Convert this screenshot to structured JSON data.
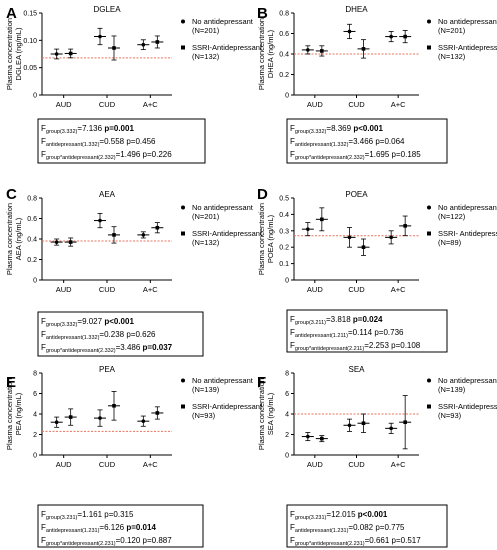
{
  "chart_data": [
    {
      "panel": "A",
      "title": "DGLEA",
      "type": "scatter",
      "ylabel_lines": [
        "Plasma concentration",
        "DGLEA (ng/mL)"
      ],
      "ylim": [
        0,
        0.15
      ],
      "yticks": [
        0,
        0.05,
        0.1,
        0.15
      ],
      "yticklabels": [
        "0",
        "0.05",
        "0.10",
        "0.15"
      ],
      "categories": [
        "AUD",
        "CUD",
        "A+C"
      ],
      "reference_line": 0.068,
      "series": [
        {
          "name": "No antidepressant",
          "n": "(N=201)",
          "marker": "circle",
          "mean": [
            0.075,
            0.107,
            0.092
          ],
          "err": [
            0.009,
            0.015,
            0.009
          ]
        },
        {
          "name": "SSRI-Antidepressant",
          "n": "(N=132)",
          "marker": "square",
          "mean": [
            0.076,
            0.086,
            0.097
          ],
          "err": [
            0.008,
            0.022,
            0.011
          ]
        }
      ],
      "stats": [
        [
          {
            "t": "F"
          },
          {
            "t": "group(3.332)",
            "sub": true
          },
          {
            "t": "=7.136 "
          },
          {
            "t": "p=0.001",
            "bold": true
          }
        ],
        [
          {
            "t": "F"
          },
          {
            "t": "antidepressant(1.332)",
            "sub": true
          },
          {
            "t": "=0.558 p=0.456"
          }
        ],
        [
          {
            "t": "F"
          },
          {
            "t": "group*antidepressant(2.332)",
            "sub": true
          },
          {
            "t": "=1.496 p=0.226"
          }
        ]
      ]
    },
    {
      "panel": "B",
      "title": "DHEA",
      "type": "scatter",
      "ylabel_lines": [
        "Plasma concentration",
        "DHEA (ng/mL)"
      ],
      "ylim": [
        0,
        0.8
      ],
      "yticks": [
        0,
        0.2,
        0.4,
        0.6,
        0.8
      ],
      "yticklabels": [
        "0",
        "0.2",
        "0.4",
        "0.6",
        "0.8"
      ],
      "categories": [
        "AUD",
        "CUD",
        "A+C"
      ],
      "reference_line": 0.4,
      "series": [
        {
          "name": "No antidepressant",
          "n": "(N=201)",
          "marker": "circle",
          "mean": [
            0.44,
            0.62,
            0.57
          ],
          "err": [
            0.04,
            0.07,
            0.05
          ]
        },
        {
          "name": "SSRI-Antidepressant",
          "n": "(N=132)",
          "marker": "square",
          "mean": [
            0.43,
            0.45,
            0.57
          ],
          "err": [
            0.05,
            0.09,
            0.06
          ]
        }
      ],
      "stats": [
        [
          {
            "t": "F"
          },
          {
            "t": "group(3.332)",
            "sub": true
          },
          {
            "t": "=8.369 "
          },
          {
            "t": "p<0.001",
            "bold": true
          }
        ],
        [
          {
            "t": "F"
          },
          {
            "t": "antidepressant(1.332)",
            "sub": true
          },
          {
            "t": "=3.466 p=0.064"
          }
        ],
        [
          {
            "t": "F"
          },
          {
            "t": "group*antidepressant(2.332)",
            "sub": true
          },
          {
            "t": "=1.695 p=0.185"
          }
        ]
      ]
    },
    {
      "panel": "C",
      "title": "AEA",
      "type": "scatter",
      "ylabel_lines": [
        "Plasma concentration",
        "AEA (ng/mL)"
      ],
      "ylim": [
        0,
        0.8
      ],
      "yticks": [
        0,
        0.2,
        0.4,
        0.6,
        0.8
      ],
      "yticklabels": [
        "0",
        "0.2",
        "0.4",
        "0.6",
        "0.8"
      ],
      "categories": [
        "AUD",
        "CUD",
        "A+C"
      ],
      "reference_line": 0.38,
      "series": [
        {
          "name": "No antidepressant",
          "n": "(N=201)",
          "marker": "circle",
          "mean": [
            0.37,
            0.58,
            0.44
          ],
          "err": [
            0.03,
            0.07,
            0.03
          ]
        },
        {
          "name": "SSRI-Antidepressant",
          "n": "(N=132)",
          "marker": "square",
          "mean": [
            0.37,
            0.44,
            0.51
          ],
          "err": [
            0.04,
            0.08,
            0.05
          ]
        }
      ],
      "stats": [
        [
          {
            "t": "F"
          },
          {
            "t": "group(3.332)",
            "sub": true
          },
          {
            "t": "=9.027 "
          },
          {
            "t": "p<0.001",
            "bold": true
          }
        ],
        [
          {
            "t": "F"
          },
          {
            "t": "antidepressant(1.332)",
            "sub": true
          },
          {
            "t": "=0.238 p=0.626"
          }
        ],
        [
          {
            "t": "F"
          },
          {
            "t": "group*antidepressant(2.332)",
            "sub": true
          },
          {
            "t": "=3.486 "
          },
          {
            "t": "p=0.037",
            "bold": true
          }
        ]
      ]
    },
    {
      "panel": "D",
      "title": "POEA",
      "type": "scatter",
      "ylabel_lines": [
        "Plasma concentration",
        "POEA (ng/mL)"
      ],
      "ylim": [
        0,
        0.5
      ],
      "yticks": [
        0,
        0.1,
        0.2,
        0.3,
        0.4,
        0.5
      ],
      "yticklabels": [
        "0",
        "0.1",
        "0.2",
        "0.3",
        "0.4",
        "0.5"
      ],
      "categories": [
        "AUD",
        "CUD",
        "A+C"
      ],
      "reference_line": 0.27,
      "series": [
        {
          "name": "No antidepressant",
          "n": "(N=122)",
          "marker": "circle",
          "mean": [
            0.31,
            0.26,
            0.26
          ],
          "err": [
            0.04,
            0.06,
            0.04
          ]
        },
        {
          "name": "SSRI- Antidepressant",
          "n": "(N=89)",
          "marker": "square",
          "mean": [
            0.37,
            0.2,
            0.33
          ],
          "err": [
            0.07,
            0.05,
            0.06
          ]
        }
      ],
      "stats": [
        [
          {
            "t": "F"
          },
          {
            "t": "group(3.211)",
            "sub": true
          },
          {
            "t": "=3.818 "
          },
          {
            "t": "p=0.024",
            "bold": true
          }
        ],
        [
          {
            "t": "F"
          },
          {
            "t": "antidepressant(1.211)",
            "sub": true
          },
          {
            "t": "=0.114 p=0.736"
          }
        ],
        [
          {
            "t": "F"
          },
          {
            "t": "group*antidepressant(2.211)",
            "sub": true
          },
          {
            "t": "=2.253 p=0.108"
          }
        ]
      ]
    },
    {
      "panel": "E",
      "title": "PEA",
      "type": "scatter",
      "ylabel_lines": [
        "Plasma concentration",
        "PEA (ng/mL)"
      ],
      "ylim": [
        0,
        8
      ],
      "yticks": [
        0,
        2,
        4,
        6,
        8
      ],
      "yticklabels": [
        "0",
        "2",
        "4",
        "6",
        "8"
      ],
      "categories": [
        "AUD",
        "CUD",
        "A+C"
      ],
      "reference_line": 2.3,
      "series": [
        {
          "name": "No antidepressant",
          "n": "(N=139)",
          "marker": "circle",
          "mean": [
            3.2,
            3.6,
            3.3
          ],
          "err": [
            0.5,
            0.8,
            0.5
          ]
        },
        {
          "name": "SSRI-Antidepressant",
          "n": "(N=93)",
          "marker": "square",
          "mean": [
            3.7,
            4.8,
            4.1
          ],
          "err": [
            0.8,
            1.4,
            0.6
          ]
        }
      ],
      "stats": [
        [
          {
            "t": "F"
          },
          {
            "t": "group(3.231)",
            "sub": true
          },
          {
            "t": "=1.161 p=0.315"
          }
        ],
        [
          {
            "t": "F"
          },
          {
            "t": "antidepressant(1.231)",
            "sub": true
          },
          {
            "t": "=6.126 "
          },
          {
            "t": "p=0.014",
            "bold": true
          }
        ],
        [
          {
            "t": "F"
          },
          {
            "t": "group*antidepressant(2.231)",
            "sub": true
          },
          {
            "t": "=0.120 p=0.887"
          }
        ]
      ]
    },
    {
      "panel": "F",
      "title": "SEA",
      "type": "scatter",
      "ylabel_lines": [
        "Plasma concentration",
        "SEA (ng/mL)"
      ],
      "ylim": [
        0,
        8
      ],
      "yticks": [
        0,
        2,
        4,
        6,
        8
      ],
      "yticklabels": [
        "0",
        "2",
        "4",
        "6",
        "8"
      ],
      "categories": [
        "AUD",
        "CUD",
        "A+C"
      ],
      "reference_line": 4.0,
      "series": [
        {
          "name": "No antidepressant",
          "n": "(N=139)",
          "marker": "circle",
          "mean": [
            1.8,
            2.9,
            2.6
          ],
          "err": [
            0.4,
            0.6,
            0.5
          ]
        },
        {
          "name": "SSRI-Antidepressant",
          "n": "(N=93)",
          "marker": "square",
          "mean": [
            1.6,
            3.1,
            3.2
          ],
          "err": [
            0.3,
            0.9,
            2.6
          ]
        }
      ],
      "stats": [
        [
          {
            "t": "F"
          },
          {
            "t": "group(3.231)",
            "sub": true
          },
          {
            "t": "=12.015 "
          },
          {
            "t": "p<0.001",
            "bold": true
          }
        ],
        [
          {
            "t": "F"
          },
          {
            "t": "antidepressant(1.231)",
            "sub": true
          },
          {
            "t": "=0.082 p=0.775"
          }
        ],
        [
          {
            "t": "F"
          },
          {
            "t": "group*antidepressant(2.231)",
            "sub": true
          },
          {
            "t": "=0.661 p=0.517"
          }
        ]
      ]
    }
  ],
  "colors": {
    "reference_line": "#e8735a",
    "ink": "#000000"
  }
}
